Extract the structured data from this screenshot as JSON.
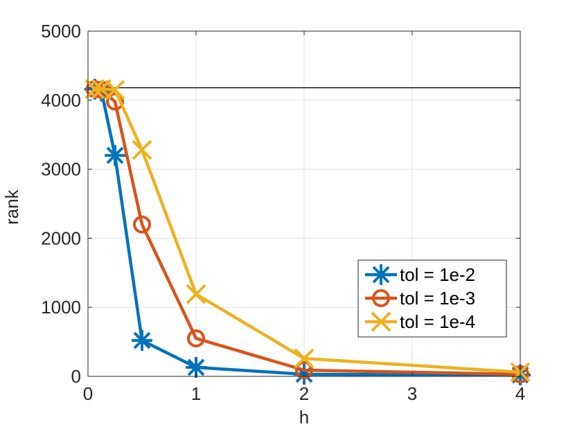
{
  "chart_data": {
    "type": "line",
    "xlabel": "h",
    "ylabel": "rank",
    "ylim": [
      0,
      5000
    ],
    "xticks": [
      "0",
      "1",
      "2",
      "3",
      "4"
    ],
    "yticks": [
      "0",
      "1000",
      "2000",
      "3000",
      "4000",
      "5000"
    ],
    "grid": true,
    "legend_position": "bottom-right",
    "reference_line": {
      "y": 4180,
      "color": "#000000"
    },
    "x": [
      0.0625,
      0.125,
      0.25,
      0.5,
      1,
      2,
      4
    ],
    "series": [
      {
        "name": "tol = 1e-2",
        "marker": "asterisk",
        "color": "#0072BD",
        "values": [
          4160,
          4130,
          3200,
          520,
          130,
          30,
          20
        ]
      },
      {
        "name": "tol = 1e-3",
        "marker": "circle",
        "color": "#D95319",
        "values": [
          4160,
          4150,
          3980,
          2200,
          550,
          90,
          30
        ]
      },
      {
        "name": "tol = 1e-4",
        "marker": "x",
        "color": "#EDB120",
        "values": [
          4160,
          4160,
          4150,
          3280,
          1190,
          260,
          60
        ]
      }
    ]
  }
}
